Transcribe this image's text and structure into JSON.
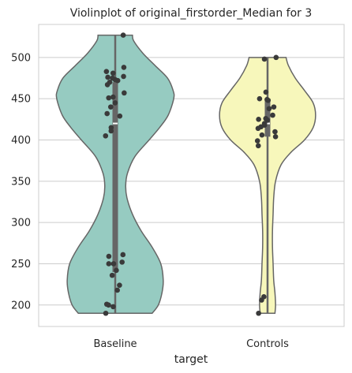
{
  "chart_data": {
    "type": "violin",
    "title": "Violinplot of original_firstorder_Median for 3",
    "xlabel": "target",
    "ylabel": "",
    "categories": [
      "Baseline",
      "Controls"
    ],
    "yticks": [
      200,
      250,
      300,
      350,
      400,
      450,
      500
    ],
    "ylim": [
      174,
      540
    ],
    "grid": "horizontal",
    "colors": {
      "Baseline": "#96cbc1",
      "Controls": "#f7f7bb",
      "outline": "#666666",
      "points": "#3a3a3a",
      "box": "#666666",
      "grid": "#cccccc"
    },
    "violins": [
      {
        "name": "Baseline",
        "min": 190,
        "max": 527,
        "median": 420,
        "q1": 240,
        "q3": 470,
        "density": [
          [
            190,
            0.6
          ],
          [
            200,
            0.7
          ],
          [
            215,
            0.76
          ],
          [
            230,
            0.78
          ],
          [
            250,
            0.74
          ],
          [
            270,
            0.6
          ],
          [
            290,
            0.42
          ],
          [
            310,
            0.28
          ],
          [
            330,
            0.19
          ],
          [
            345,
            0.17
          ],
          [
            360,
            0.2
          ],
          [
            380,
            0.32
          ],
          [
            400,
            0.55
          ],
          [
            415,
            0.72
          ],
          [
            430,
            0.86
          ],
          [
            450,
            0.95
          ],
          [
            460,
            0.94
          ],
          [
            475,
            0.85
          ],
          [
            490,
            0.65
          ],
          [
            505,
            0.45
          ],
          [
            520,
            0.3
          ],
          [
            527,
            0.28
          ]
        ],
        "points": [
          527,
          488,
          483,
          481,
          477,
          476,
          475,
          473,
          472,
          470,
          467,
          457,
          452,
          451,
          445,
          440,
          432,
          429,
          415,
          411,
          405,
          261,
          259,
          252,
          250,
          250,
          242,
          236,
          224,
          218,
          201,
          200,
          198,
          190
        ]
      },
      {
        "name": "Controls",
        "min": 190,
        "max": 500,
        "median": 420,
        "q1": 404,
        "q3": 450,
        "density": [
          [
            190,
            0.12
          ],
          [
            200,
            0.13
          ],
          [
            215,
            0.12
          ],
          [
            230,
            0.1
          ],
          [
            250,
            0.09
          ],
          [
            270,
            0.08
          ],
          [
            290,
            0.08
          ],
          [
            310,
            0.09
          ],
          [
            330,
            0.1
          ],
          [
            350,
            0.13
          ],
          [
            370,
            0.22
          ],
          [
            385,
            0.38
          ],
          [
            400,
            0.6
          ],
          [
            415,
            0.74
          ],
          [
            430,
            0.78
          ],
          [
            445,
            0.74
          ],
          [
            460,
            0.6
          ],
          [
            475,
            0.45
          ],
          [
            490,
            0.34
          ],
          [
            500,
            0.3
          ]
        ],
        "points": [
          500,
          498,
          458,
          450,
          449,
          448,
          440,
          438,
          430,
          426,
          425,
          424,
          420,
          418,
          416,
          414,
          410,
          406,
          404,
          399,
          393,
          210,
          206,
          190
        ]
      }
    ]
  }
}
